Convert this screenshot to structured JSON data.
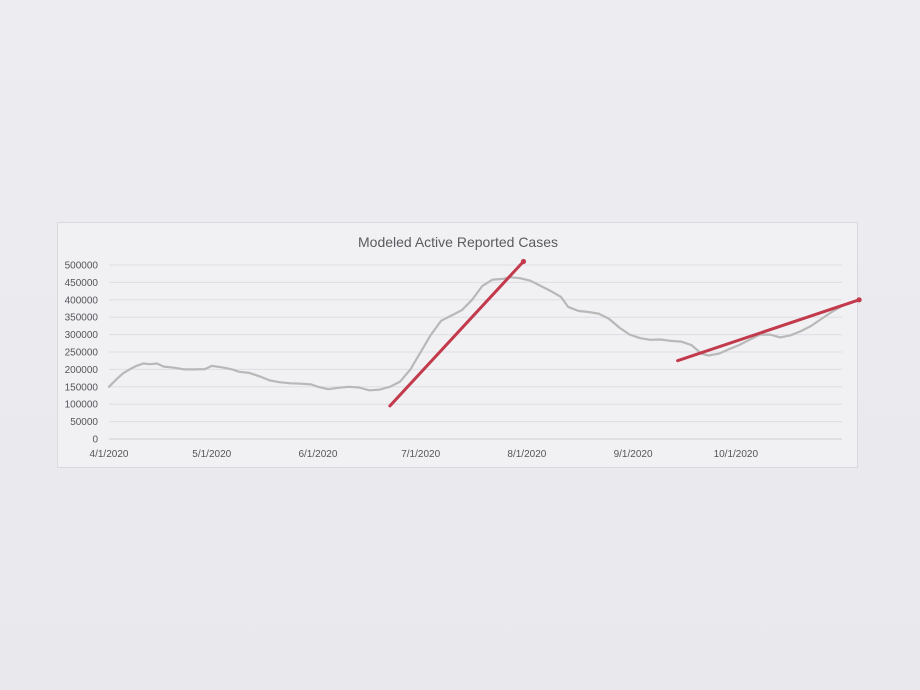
{
  "chart_data": {
    "type": "line",
    "title": "Modeled Active Reported Cases",
    "xlabel": "",
    "ylabel": "",
    "x_ticks": [
      "4/1/2020",
      "5/1/2020",
      "6/1/2020",
      "7/1/2020",
      "8/1/2020",
      "9/1/2020",
      "10/1/2020"
    ],
    "y_ticks": [
      0,
      50000,
      100000,
      150000,
      200000,
      250000,
      300000,
      350000,
      400000,
      450000,
      500000
    ],
    "xlim": [
      "4/1/2020",
      "11/1/2020"
    ],
    "ylim": [
      0,
      500000
    ],
    "grid": "horizontal",
    "legend": "none",
    "series": [
      {
        "color": "#b8b8b8",
        "points": [
          [
            "4/1/2020",
            150000
          ],
          [
            "4/3/2020",
            170000
          ],
          [
            "4/5/2020",
            188000
          ],
          [
            "4/7/2020",
            200000
          ],
          [
            "4/9/2020",
            210000
          ],
          [
            "4/11/2020",
            217000
          ],
          [
            "4/13/2020",
            215000
          ],
          [
            "4/15/2020",
            217000
          ],
          [
            "4/17/2020",
            208000
          ],
          [
            "4/20/2020",
            205000
          ],
          [
            "4/23/2020",
            200000
          ],
          [
            "4/26/2020",
            200000
          ],
          [
            "4/29/2020",
            201000
          ],
          [
            "5/1/2020",
            210000
          ],
          [
            "5/4/2020",
            206000
          ],
          [
            "5/7/2020",
            200000
          ],
          [
            "5/9/2020",
            193000
          ],
          [
            "5/12/2020",
            190000
          ],
          [
            "5/15/2020",
            180000
          ],
          [
            "5/18/2020",
            168000
          ],
          [
            "5/21/2020",
            163000
          ],
          [
            "5/24/2020",
            160000
          ],
          [
            "5/27/2020",
            159000
          ],
          [
            "5/30/2020",
            157000
          ],
          [
            "6/1/2020",
            150000
          ],
          [
            "6/4/2020",
            143000
          ],
          [
            "6/7/2020",
            147000
          ],
          [
            "6/10/2020",
            150000
          ],
          [
            "6/13/2020",
            148000
          ],
          [
            "6/16/2020",
            140000
          ],
          [
            "6/19/2020",
            142000
          ],
          [
            "6/22/2020",
            150000
          ],
          [
            "6/25/2020",
            165000
          ],
          [
            "6/28/2020",
            200000
          ],
          [
            "7/1/2020",
            250000
          ],
          [
            "7/4/2020",
            300000
          ],
          [
            "7/7/2020",
            340000
          ],
          [
            "7/10/2020",
            355000
          ],
          [
            "7/13/2020",
            370000
          ],
          [
            "7/16/2020",
            400000
          ],
          [
            "7/19/2020",
            440000
          ],
          [
            "7/22/2020",
            458000
          ],
          [
            "7/25/2020",
            460000
          ],
          [
            "7/27/2020",
            465000
          ],
          [
            "7/30/2020",
            462000
          ],
          [
            "8/2/2020",
            455000
          ],
          [
            "8/5/2020",
            440000
          ],
          [
            "8/8/2020",
            425000
          ],
          [
            "8/11/2020",
            408000
          ],
          [
            "8/13/2020",
            380000
          ],
          [
            "8/16/2020",
            368000
          ],
          [
            "8/19/2020",
            365000
          ],
          [
            "8/22/2020",
            360000
          ],
          [
            "8/25/2020",
            345000
          ],
          [
            "8/28/2020",
            320000
          ],
          [
            "8/31/2020",
            300000
          ],
          [
            "9/3/2020",
            290000
          ],
          [
            "9/6/2020",
            285000
          ],
          [
            "9/9/2020",
            286000
          ],
          [
            "9/12/2020",
            282000
          ],
          [
            "9/15/2020",
            280000
          ],
          [
            "9/18/2020",
            270000
          ],
          [
            "9/21/2020",
            245000
          ],
          [
            "9/23/2020",
            240000
          ],
          [
            "9/26/2020",
            245000
          ],
          [
            "9/29/2020",
            258000
          ],
          [
            "10/2/2020",
            270000
          ],
          [
            "10/5/2020",
            285000
          ],
          [
            "10/8/2020",
            300000
          ],
          [
            "10/11/2020",
            300000
          ],
          [
            "10/14/2020",
            292000
          ],
          [
            "10/17/2020",
            298000
          ],
          [
            "10/20/2020",
            310000
          ],
          [
            "10/23/2020",
            325000
          ],
          [
            "10/26/2020",
            345000
          ],
          [
            "10/29/2020",
            365000
          ],
          [
            "11/1/2020",
            382000
          ],
          [
            "11/3/2020",
            390000
          ]
        ]
      }
    ],
    "annotations": [
      {
        "type": "trend-line",
        "color": "#c23a4c",
        "from": [
          "6/22/2020",
          95000
        ],
        "to": [
          "7/31/2020",
          510000
        ]
      },
      {
        "type": "trend-line",
        "color": "#c23a4c",
        "from": [
          "9/14/2020",
          225000
        ],
        "to": [
          "11/6/2020",
          400000
        ]
      }
    ]
  }
}
